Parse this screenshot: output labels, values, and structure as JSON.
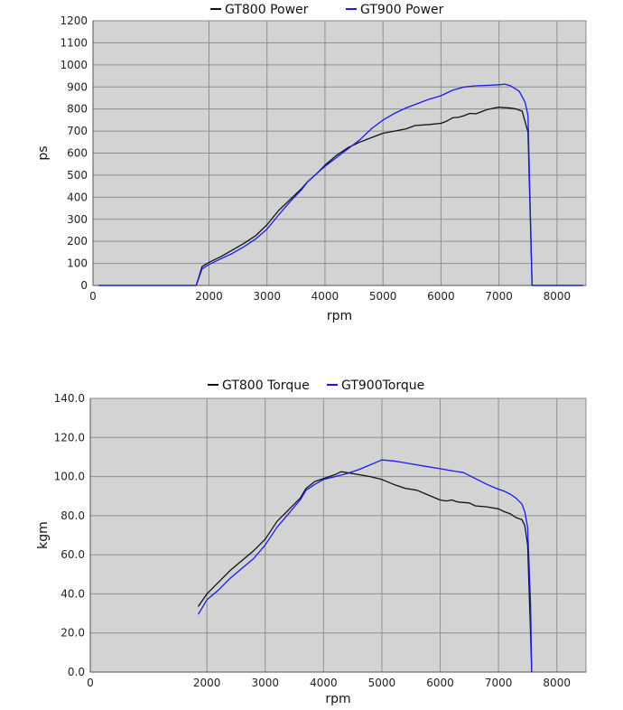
{
  "chart_data": [
    {
      "type": "line",
      "title": "",
      "xlabel": "rpm",
      "ylabel": "ps",
      "xlim": [
        0,
        8500
      ],
      "ylim": [
        0,
        1200
      ],
      "xticks": [
        0,
        2000,
        3000,
        4000,
        5000,
        6000,
        7000,
        8000
      ],
      "xtick_labels": [
        "0",
        "2000",
        "3000",
        "4000",
        "5000",
        "6000",
        "7000",
        "8000"
      ],
      "yticks": [
        0,
        100,
        200,
        300,
        400,
        500,
        600,
        700,
        800,
        900,
        1000,
        1100,
        1200
      ],
      "ytick_labels": [
        "0",
        "100",
        "200",
        "300",
        "400",
        "500",
        "600",
        "700",
        "800",
        "900",
        "1000",
        "1100",
        "1200"
      ],
      "grid": true,
      "legend_position": "top",
      "background": "#d3d3d3",
      "series": [
        {
          "name": "GT800 Power",
          "color": "#111111",
          "points": [
            [
              100,
              0
            ],
            [
              1780,
              0
            ],
            [
              1880,
              85
            ],
            [
              2000,
              105
            ],
            [
              2200,
              130
            ],
            [
              2400,
              160
            ],
            [
              2600,
              190
            ],
            [
              2800,
              225
            ],
            [
              3000,
              275
            ],
            [
              3200,
              340
            ],
            [
              3400,
              390
            ],
            [
              3600,
              440
            ],
            [
              3700,
              470
            ],
            [
              3850,
              505
            ],
            [
              4000,
              545
            ],
            [
              4200,
              590
            ],
            [
              4400,
              625
            ],
            [
              4600,
              650
            ],
            [
              4800,
              670
            ],
            [
              5000,
              690
            ],
            [
              5200,
              700
            ],
            [
              5400,
              710
            ],
            [
              5550,
              725
            ],
            [
              5800,
              730
            ],
            [
              6000,
              735
            ],
            [
              6100,
              745
            ],
            [
              6200,
              760
            ],
            [
              6300,
              762
            ],
            [
              6400,
              770
            ],
            [
              6500,
              780
            ],
            [
              6600,
              778
            ],
            [
              6700,
              788
            ],
            [
              6800,
              798
            ],
            [
              6900,
              803
            ],
            [
              7000,
              808
            ],
            [
              7100,
              806
            ],
            [
              7200,
              804
            ],
            [
              7300,
              800
            ],
            [
              7400,
              790
            ],
            [
              7500,
              695
            ],
            [
              7570,
              0
            ],
            [
              8450,
              0
            ]
          ]
        },
        {
          "name": "GT900 Power",
          "color": "#1a1aee",
          "points": [
            [
              100,
              0
            ],
            [
              1780,
              0
            ],
            [
              1880,
              75
            ],
            [
              2000,
              95
            ],
            [
              2200,
              120
            ],
            [
              2400,
              145
            ],
            [
              2600,
              175
            ],
            [
              2800,
              210
            ],
            [
              3000,
              255
            ],
            [
              3200,
              320
            ],
            [
              3400,
              380
            ],
            [
              3600,
              435
            ],
            [
              3700,
              470
            ],
            [
              3850,
              505
            ],
            [
              4000,
              540
            ],
            [
              4200,
              580
            ],
            [
              4400,
              620
            ],
            [
              4600,
              660
            ],
            [
              4800,
              710
            ],
            [
              5000,
              750
            ],
            [
              5200,
              780
            ],
            [
              5400,
              805
            ],
            [
              5600,
              825
            ],
            [
              5800,
              845
            ],
            [
              6000,
              860
            ],
            [
              6200,
              885
            ],
            [
              6400,
              900
            ],
            [
              6600,
              905
            ],
            [
              6800,
              907
            ],
            [
              7000,
              910
            ],
            [
              7100,
              913
            ],
            [
              7200,
              905
            ],
            [
              7350,
              880
            ],
            [
              7450,
              830
            ],
            [
              7500,
              770
            ],
            [
              7570,
              0
            ],
            [
              8450,
              0
            ]
          ]
        }
      ]
    },
    {
      "type": "line",
      "title": "",
      "xlabel": "rpm",
      "ylabel": "kgm",
      "xlim": [
        0,
        8500
      ],
      "ylim": [
        0,
        140
      ],
      "xticks": [
        0,
        2000,
        3000,
        4000,
        5000,
        6000,
        7000,
        8000
      ],
      "xtick_labels": [
        "0",
        "2000",
        "3000",
        "4000",
        "5000",
        "6000",
        "7000",
        "8000"
      ],
      "yticks": [
        0,
        20,
        40,
        60,
        80,
        100,
        120,
        140
      ],
      "ytick_labels": [
        "0.0",
        "20.0",
        "40.0",
        "60.0",
        "80.0",
        "100.0",
        "120.0",
        "140.0"
      ],
      "grid": true,
      "legend_position": "top",
      "background": "#d3d3d3",
      "series": [
        {
          "name": "GT800 Torque",
          "color": "#111111",
          "points": [
            [
              1850,
              33.5
            ],
            [
              2000,
              40
            ],
            [
              2200,
              46
            ],
            [
              2400,
              52
            ],
            [
              2600,
              57
            ],
            [
              2800,
              62
            ],
            [
              3000,
              68
            ],
            [
              3200,
              77
            ],
            [
              3400,
              83
            ],
            [
              3600,
              89
            ],
            [
              3700,
              94
            ],
            [
              3850,
              97.5
            ],
            [
              4000,
              99
            ],
            [
              4200,
              101
            ],
            [
              4300,
              102.5
            ],
            [
              4400,
              102
            ],
            [
              4600,
              101
            ],
            [
              4800,
              100
            ],
            [
              5000,
              98.5
            ],
            [
              5200,
              96
            ],
            [
              5400,
              94
            ],
            [
              5600,
              93
            ],
            [
              5800,
              90.5
            ],
            [
              6000,
              88
            ],
            [
              6100,
              87.5
            ],
            [
              6200,
              88
            ],
            [
              6300,
              87
            ],
            [
              6500,
              86.5
            ],
            [
              6600,
              85
            ],
            [
              6800,
              84.5
            ],
            [
              7000,
              83.5
            ],
            [
              7100,
              82
            ],
            [
              7200,
              81
            ],
            [
              7300,
              79
            ],
            [
              7400,
              78
            ],
            [
              7450,
              75
            ],
            [
              7500,
              65
            ],
            [
              7550,
              20
            ],
            [
              7570,
              0
            ]
          ]
        },
        {
          "name": "GT900Torque",
          "color": "#1a1aee",
          "points": [
            [
              1850,
              29.5
            ],
            [
              2000,
              37
            ],
            [
              2200,
              42
            ],
            [
              2400,
              48
            ],
            [
              2600,
              53
            ],
            [
              2800,
              58
            ],
            [
              3000,
              65
            ],
            [
              3200,
              74
            ],
            [
              3400,
              81
            ],
            [
              3600,
              88
            ],
            [
              3700,
              93
            ],
            [
              3850,
              96
            ],
            [
              4000,
              98.5
            ],
            [
              4200,
              100
            ],
            [
              4400,
              101.5
            ],
            [
              4600,
              103.5
            ],
            [
              4800,
              106
            ],
            [
              5000,
              108.5
            ],
            [
              5200,
              108
            ],
            [
              5400,
              107
            ],
            [
              5600,
              106
            ],
            [
              5800,
              105
            ],
            [
              6000,
              104
            ],
            [
              6200,
              103
            ],
            [
              6400,
              102
            ],
            [
              6600,
              99
            ],
            [
              6800,
              96
            ],
            [
              7000,
              93.5
            ],
            [
              7100,
              92.5
            ],
            [
              7200,
              91
            ],
            [
              7300,
              89
            ],
            [
              7400,
              86
            ],
            [
              7450,
              82
            ],
            [
              7500,
              74
            ],
            [
              7550,
              35
            ],
            [
              7570,
              0
            ]
          ]
        }
      ]
    }
  ]
}
